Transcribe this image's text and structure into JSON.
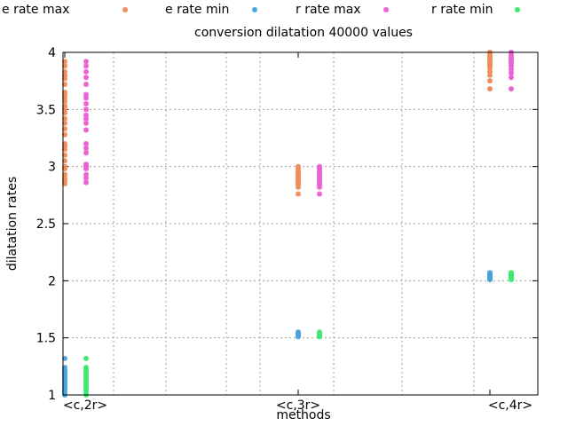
{
  "chart_data": {
    "type": "scatter",
    "title": "conversion dilatation 40000 values",
    "xlabel": "methods",
    "ylabel": "dilatation rates",
    "categories": [
      "<c,2r>",
      "<c,3r>",
      "<c,4r>"
    ],
    "ylim": [
      1,
      4
    ],
    "yticks": [
      "1",
      "1.5",
      "2",
      "2.5",
      "3",
      "3.5",
      "4"
    ],
    "grid": true,
    "legend_position": "top",
    "series": [
      {
        "name": "e rate max",
        "color": "#f08c5a",
        "values": [
          [
            0,
            2.85
          ],
          [
            0,
            2.88
          ],
          [
            0,
            2.9
          ],
          [
            0,
            2.93
          ],
          [
            0,
            2.98
          ],
          [
            0,
            3.0
          ],
          [
            0,
            3.05
          ],
          [
            0,
            3.1
          ],
          [
            0,
            3.15
          ],
          [
            0,
            3.18
          ],
          [
            0,
            3.2
          ],
          [
            0,
            3.28
          ],
          [
            0,
            3.33
          ],
          [
            0,
            3.38
          ],
          [
            0,
            3.42
          ],
          [
            0,
            3.47
          ],
          [
            0,
            3.5
          ],
          [
            0,
            3.53
          ],
          [
            0,
            3.57
          ],
          [
            0,
            3.6
          ],
          [
            0,
            3.63
          ],
          [
            0,
            3.65
          ],
          [
            0,
            3.72
          ],
          [
            0,
            3.77
          ],
          [
            0,
            3.8
          ],
          [
            0,
            3.83
          ],
          [
            0,
            3.88
          ],
          [
            0,
            3.92
          ],
          [
            1,
            2.76
          ],
          [
            1,
            2.82
          ],
          [
            1,
            2.84
          ],
          [
            1,
            2.86
          ],
          [
            1,
            2.88
          ],
          [
            1,
            2.9
          ],
          [
            1,
            2.92
          ],
          [
            1,
            2.94
          ],
          [
            1,
            2.96
          ],
          [
            1,
            2.98
          ],
          [
            1,
            3.0
          ],
          [
            2,
            3.68
          ],
          [
            2,
            3.75
          ],
          [
            2,
            3.8
          ],
          [
            2,
            3.83
          ],
          [
            2,
            3.86
          ],
          [
            2,
            3.88
          ],
          [
            2,
            3.9
          ],
          [
            2,
            3.92
          ],
          [
            2,
            3.94
          ],
          [
            2,
            3.96
          ],
          [
            2,
            3.98
          ],
          [
            2,
            4.0
          ]
        ]
      },
      {
        "name": "e rate min",
        "color": "#4aa3e0",
        "values": [
          [
            0,
            1.0
          ],
          [
            0,
            1.02
          ],
          [
            0,
            1.04
          ],
          [
            0,
            1.06
          ],
          [
            0,
            1.08
          ],
          [
            0,
            1.1
          ],
          [
            0,
            1.12
          ],
          [
            0,
            1.14
          ],
          [
            0,
            1.16
          ],
          [
            0,
            1.18
          ],
          [
            0,
            1.2
          ],
          [
            0,
            1.22
          ],
          [
            0,
            1.24
          ],
          [
            0,
            1.32
          ],
          [
            1,
            1.51
          ],
          [
            1,
            1.52
          ],
          [
            1,
            1.53
          ],
          [
            1,
            1.54
          ],
          [
            1,
            1.55
          ],
          [
            2,
            2.01
          ],
          [
            2,
            2.02
          ],
          [
            2,
            2.03
          ],
          [
            2,
            2.04
          ],
          [
            2,
            2.05
          ],
          [
            2,
            2.06
          ],
          [
            2,
            2.07
          ]
        ]
      },
      {
        "name": "r rate max",
        "color": "#ec60d2",
        "values": [
          [
            0,
            2.86
          ],
          [
            0,
            2.9
          ],
          [
            0,
            2.93
          ],
          [
            0,
            2.98
          ],
          [
            0,
            3.0
          ],
          [
            0,
            3.02
          ],
          [
            0,
            3.12
          ],
          [
            0,
            3.16
          ],
          [
            0,
            3.2
          ],
          [
            0,
            3.32
          ],
          [
            0,
            3.38
          ],
          [
            0,
            3.42
          ],
          [
            0,
            3.45
          ],
          [
            0,
            3.5
          ],
          [
            0,
            3.55
          ],
          [
            0,
            3.6
          ],
          [
            0,
            3.63
          ],
          [
            0,
            3.72
          ],
          [
            0,
            3.78
          ],
          [
            0,
            3.83
          ],
          [
            0,
            3.88
          ],
          [
            0,
            3.92
          ],
          [
            1,
            2.76
          ],
          [
            1,
            2.82
          ],
          [
            1,
            2.84
          ],
          [
            1,
            2.86
          ],
          [
            1,
            2.88
          ],
          [
            1,
            2.9
          ],
          [
            1,
            2.92
          ],
          [
            1,
            2.94
          ],
          [
            1,
            2.96
          ],
          [
            1,
            2.98
          ],
          [
            1,
            3.0
          ],
          [
            2,
            3.68
          ],
          [
            2,
            3.78
          ],
          [
            2,
            3.82
          ],
          [
            2,
            3.85
          ],
          [
            2,
            3.88
          ],
          [
            2,
            3.9
          ],
          [
            2,
            3.92
          ],
          [
            2,
            3.94
          ],
          [
            2,
            3.96
          ],
          [
            2,
            3.98
          ],
          [
            2,
            4.0
          ]
        ]
      },
      {
        "name": "r rate min",
        "color": "#3ee870",
        "values": [
          [
            0,
            1.0
          ],
          [
            0,
            1.02
          ],
          [
            0,
            1.04
          ],
          [
            0,
            1.06
          ],
          [
            0,
            1.08
          ],
          [
            0,
            1.1
          ],
          [
            0,
            1.12
          ],
          [
            0,
            1.14
          ],
          [
            0,
            1.16
          ],
          [
            0,
            1.18
          ],
          [
            0,
            1.2
          ],
          [
            0,
            1.22
          ],
          [
            0,
            1.24
          ],
          [
            0,
            1.32
          ],
          [
            1,
            1.51
          ],
          [
            1,
            1.52
          ],
          [
            1,
            1.53
          ],
          [
            1,
            1.54
          ],
          [
            1,
            1.55
          ],
          [
            2,
            2.01
          ],
          [
            2,
            2.02
          ],
          [
            2,
            2.03
          ],
          [
            2,
            2.04
          ],
          [
            2,
            2.05
          ],
          [
            2,
            2.06
          ],
          [
            2,
            2.07
          ]
        ]
      }
    ]
  }
}
